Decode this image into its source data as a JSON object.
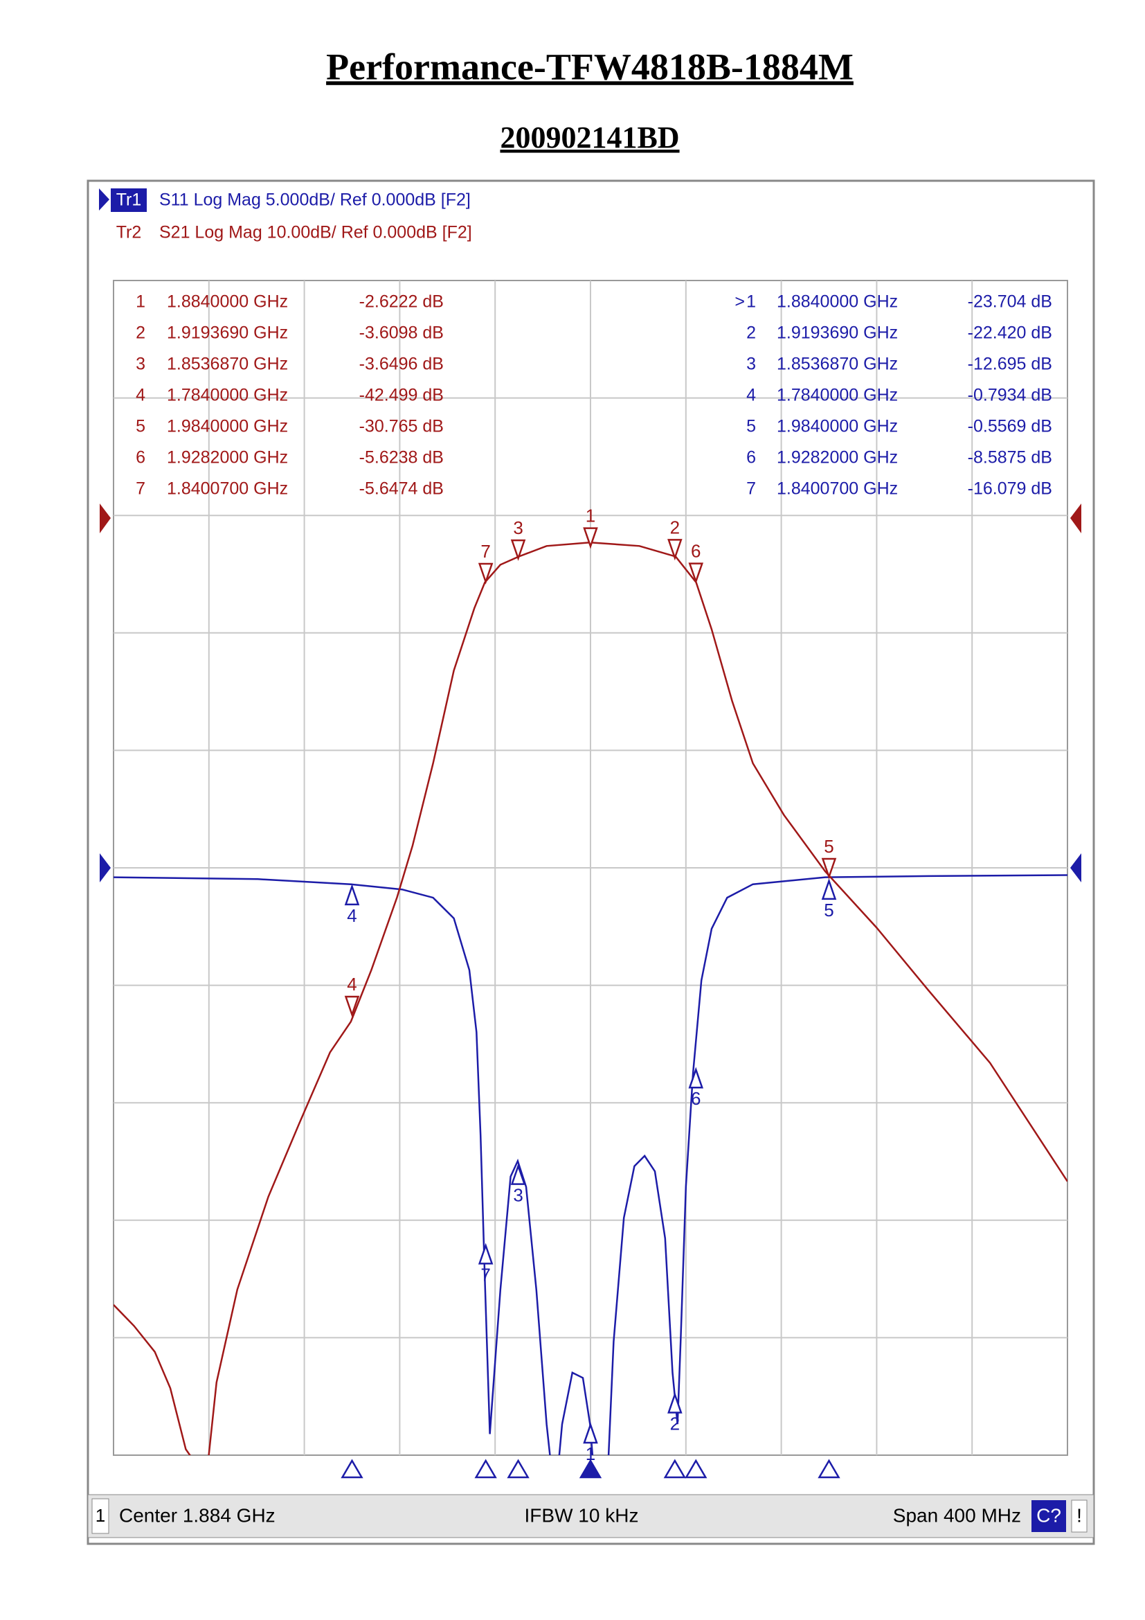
{
  "header": {
    "title": "Performance-TFW4818B-1884M",
    "subtitle": "200902141BD"
  },
  "chart_data": {
    "type": "line",
    "trace_headers": [
      {
        "id": "Tr1",
        "text": "S11 Log Mag 5.000dB/ Ref 0.000dB [F2]",
        "color": "#1c1ca8"
      },
      {
        "id": "Tr2",
        "text": "S21 Log Mag 10.00dB/ Ref 0.000dB [F2]",
        "color": "#a01818"
      }
    ],
    "xlim": [
      1.684,
      2.084
    ],
    "ylim": [
      -25,
      25
    ],
    "y2lim": [
      -80,
      20
    ],
    "grid": true,
    "series": [
      {
        "color": "#1c1ca8",
        "axis": "y",
        "x": [
          1.684,
          1.7445,
          1.7835,
          1.805,
          1.818,
          1.8267,
          1.8332,
          1.8362,
          1.8379,
          1.8397,
          1.8418,
          1.8462,
          1.8505,
          1.8535,
          1.857,
          1.8613,
          1.8656,
          1.8691,
          1.8721,
          1.8764,
          1.8808,
          1.8838,
          1.8864,
          1.8907,
          1.8937,
          1.898,
          1.9024,
          1.9067,
          1.911,
          1.9153,
          1.9184,
          1.9205,
          1.9218,
          1.924,
          1.927,
          1.9305,
          1.9348,
          1.9413,
          1.9521,
          1.9824,
          2.0256,
          2.084
        ],
        "values": [
          -0.4,
          -0.48,
          -0.7,
          -0.92,
          -1.27,
          -2.15,
          -4.35,
          -6.99,
          -11.38,
          -17.53,
          -24.1,
          -17.97,
          -13.14,
          -12.48,
          -13.58,
          -17.97,
          -23.68,
          -27,
          -23.68,
          -21.49,
          -21.71,
          -23.68,
          -27,
          -27,
          -20.17,
          -14.9,
          -12.7,
          -12.26,
          -12.92,
          -15.77,
          -21.49,
          -23.68,
          -20.17,
          -13.58,
          -8.74,
          -4.79,
          -2.59,
          -1.27,
          -0.7,
          -0.4,
          -0.35,
          -0.31
        ],
        "markers": {
          "active_prefix": ">",
          "ids": [
            "1",
            "2",
            "3",
            "4",
            "5",
            "6",
            "7"
          ],
          "x": [
            {
              "value": 1.884,
              "label": "1.8840000 GHz"
            },
            {
              "value": 1.919369,
              "label": "1.9193690 GHz"
            },
            {
              "value": 1.853687,
              "label": "1.8536870 GHz"
            },
            {
              "value": 1.784,
              "label": "1.7840000 GHz"
            },
            {
              "value": 1.984,
              "label": "1.9840000 GHz"
            },
            {
              "value": 1.9282,
              "label": "1.9282000 GHz"
            },
            {
              "value": 1.84007,
              "label": "1.8400700 GHz"
            }
          ],
          "values": [
            -23.704,
            -22.42,
            -12.695,
            -0.7934,
            -0.5569,
            -8.5875,
            -16.079
          ],
          "value_labels": [
            "-23.704 dB",
            "-22.420 dB",
            "-12.695 dB",
            "-0.7934 dB",
            "-0.5569 dB",
            "-8.5875 dB",
            "-16.079 dB"
          ]
        }
      },
      {
        "color": "#a01818",
        "axis": "y2",
        "x": [
          1.684,
          1.6926,
          1.7013,
          1.7078,
          1.7143,
          1.7229,
          1.7272,
          1.7359,
          1.7489,
          1.7618,
          1.7748,
          1.7835,
          1.7921,
          1.8029,
          1.8094,
          1.818,
          1.8267,
          1.8353,
          1.8397,
          1.8462,
          1.8539,
          1.8656,
          1.8838,
          1.9045,
          1.9197,
          1.9283,
          1.9348,
          1.9434,
          1.9521,
          1.9651,
          1.9824,
          2.004,
          2.0256,
          2.0515,
          2.084
        ],
        "values": [
          -67.2,
          -69,
          -71.2,
          -74.3,
          -79.5,
          -82,
          -73.8,
          -65.9,
          -58,
          -51.8,
          -45.7,
          -43.1,
          -38.7,
          -32.5,
          -28.1,
          -21.1,
          -13.2,
          -7.9,
          -5.7,
          -4.2,
          -3.5,
          -2.6,
          -2.3,
          -2.6,
          -3.5,
          -5.7,
          -9.7,
          -15.8,
          -21.1,
          -25.5,
          -30.3,
          -35.1,
          -40.4,
          -46.6,
          -56.7
        ],
        "markers": {
          "ids": [
            "1",
            "2",
            "3",
            "4",
            "5",
            "6",
            "7"
          ],
          "x": [
            {
              "value": 1.884,
              "label": "1.8840000 GHz"
            },
            {
              "value": 1.919369,
              "label": "1.9193690 GHz"
            },
            {
              "value": 1.853687,
              "label": "1.8536870 GHz"
            },
            {
              "value": 1.784,
              "label": "1.7840000 GHz"
            },
            {
              "value": 1.984,
              "label": "1.9840000 GHz"
            },
            {
              "value": 1.9282,
              "label": "1.9282000 GHz"
            },
            {
              "value": 1.84007,
              "label": "1.8400700 GHz"
            }
          ],
          "values": [
            -2.6222,
            -3.6098,
            -3.6496,
            -42.499,
            -30.765,
            -5.6238,
            -5.6474
          ],
          "value_labels": [
            "-2.6222 dB",
            "-3.6098 dB",
            "-3.6496 dB",
            "-42.499 dB",
            "-30.765 dB",
            "-5.6238 dB",
            "-5.6474 dB"
          ]
        }
      }
    ]
  },
  "status": {
    "channel": "1",
    "center": "Center 1.884 GHz",
    "ifbw": "IFBW 10 kHz",
    "span": "Span 400 MHz",
    "cal": "C?",
    "flag": "!"
  }
}
